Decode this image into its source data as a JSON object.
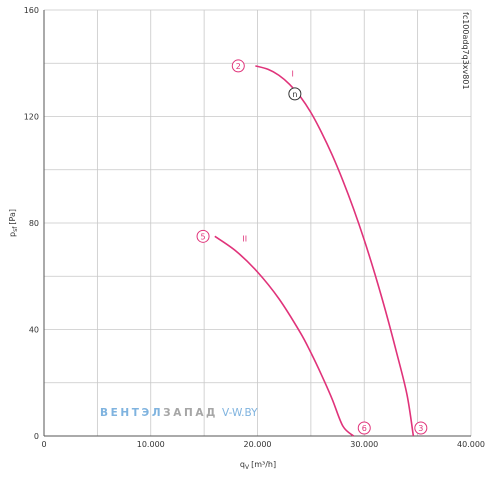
{
  "chart_data": {
    "type": "line",
    "xlabel": {
      "main": "q",
      "sub": "V",
      "unit": "[m³/h]"
    },
    "ylabel": {
      "main": "p",
      "sub": "sf",
      "unit": "[Pa]"
    },
    "xlim": [
      0,
      40000
    ],
    "ylim": [
      0,
      160
    ],
    "x_ticks": [
      0,
      10000,
      20000,
      30000,
      40000
    ],
    "x_tick_labels": [
      "0",
      "10.000",
      "20.000",
      "30.000",
      "40.000"
    ],
    "y_ticks": [
      0,
      40,
      80,
      120,
      160
    ],
    "y_tick_labels": [
      "0",
      "40",
      "80",
      "120",
      "160"
    ],
    "grid": true,
    "side_label": "fc100adq7q3xv801",
    "color": "#e0337a",
    "series": [
      {
        "name": "I",
        "label": "I",
        "label_at": [
          23300,
          135
        ],
        "x": [
          19800,
          21000,
          22000,
          23000,
          24000,
          25000,
          26000,
          27000,
          28000,
          29000,
          30000,
          31000,
          32000,
          33000,
          34000,
          34600
        ],
        "y": [
          139,
          137.7,
          135.5,
          132.1,
          127.5,
          121.5,
          114,
          105.5,
          95.9,
          85.3,
          73.6,
          60.8,
          46.9,
          31.8,
          15.6,
          0
        ]
      },
      {
        "name": "II",
        "label": "II",
        "label_at": [
          18800,
          73
        ],
        "x": [
          16000,
          18000,
          20000,
          22000,
          24000,
          25000,
          26000,
          27000,
          28000,
          29000
        ],
        "y": [
          75,
          69.4,
          61.6,
          51.6,
          38.9,
          31.3,
          22.9,
          13.8,
          3.7,
          0
        ]
      }
    ],
    "markers": [
      {
        "label": "2",
        "x": 18200,
        "y": 139,
        "style": "circle"
      },
      {
        "label": "n",
        "x": 23500,
        "y": 128.5,
        "style": "circle-dark"
      },
      {
        "label": "5",
        "x": 14900,
        "y": 75,
        "style": "circle"
      },
      {
        "label": "6",
        "x": 30000,
        "y": 3,
        "style": "circle"
      },
      {
        "label": "3",
        "x": 35300,
        "y": 3,
        "style": "circle"
      }
    ]
  },
  "watermark": {
    "part_a": "ВЕНТЭЛ",
    "part_b": "ЗАПАД",
    "part_c": "V-W.BY",
    "color_a": "#7fb3df",
    "color_b": "#a6a6a6",
    "color_c": "#7fb3df"
  }
}
